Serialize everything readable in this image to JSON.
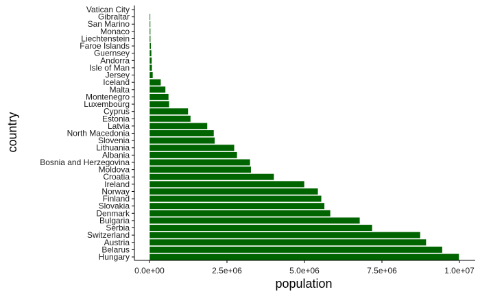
{
  "colors": {
    "bar": "#006400",
    "bar_outline": "#ffffff",
    "axis": "#000000",
    "text": "#1a1a1a",
    "background": "#ffffff"
  },
  "chart_data": {
    "type": "bar",
    "orientation": "horizontal",
    "title": "",
    "xlabel": "population",
    "ylabel": "country",
    "xlim": [
      0,
      10000000
    ],
    "xticks": [
      0,
      2500000,
      5000000,
      7500000,
      10000000
    ],
    "xtick_labels": [
      "0.0e+00",
      "2.5e+06",
      "5.0e+06",
      "7.5e+06",
      "1.0e+07"
    ],
    "grid": false,
    "categories": [
      "Hungary",
      "Belarus",
      "Austria",
      "Switzerland",
      "Serbia",
      "Bulgaria",
      "Denmark",
      "Slovakia",
      "Finland",
      "Norway",
      "Ireland",
      "Croatia",
      "Moldova",
      "Bosnia and Herzegovina",
      "Albania",
      "Lithuania",
      "Slovenia",
      "North Macedonia",
      "Latvia",
      "Estonia",
      "Cyprus",
      "Luxembourg",
      "Montenegro",
      "Malta",
      "Iceland",
      "Jersey",
      "Isle of Man",
      "Andorra",
      "Guernsey",
      "Faroe Islands",
      "Liechtenstein",
      "Monaco",
      "San Marino",
      "Gibraltar",
      "Vatican City"
    ],
    "values": [
      9990000,
      9450000,
      8930000,
      8740000,
      7190000,
      6790000,
      5840000,
      5650000,
      5550000,
      5440000,
      5000000,
      4020000,
      3280000,
      3250000,
      2830000,
      2740000,
      2110000,
      2080000,
      1870000,
      1330000,
      1250000,
      640000,
      620000,
      520000,
      370000,
      110000,
      85000,
      78000,
      67000,
      52000,
      38000,
      36000,
      34000,
      32000,
      1000
    ]
  }
}
